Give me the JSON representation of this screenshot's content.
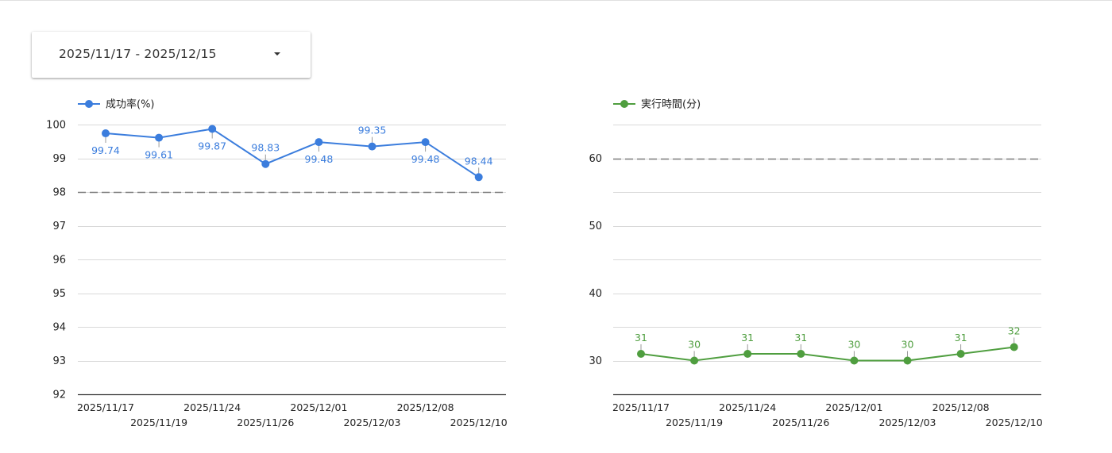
{
  "date_range": {
    "label": "2025/11/17 - 2025/12/15"
  },
  "chart_data": [
    {
      "type": "line",
      "title": "",
      "legend_label": "成功率(%)",
      "legend_position": "top-left",
      "color": "#3b7ddd",
      "x": [
        "2025/11/17",
        "2025/11/19",
        "2025/11/24",
        "2025/11/26",
        "2025/12/01",
        "2025/12/03",
        "2025/12/08",
        "2025/12/10"
      ],
      "values": [
        99.74,
        99.61,
        99.87,
        98.83,
        99.48,
        99.35,
        99.48,
        98.44
      ],
      "data_labels": [
        "99.74",
        "99.61",
        "99.87",
        "98.83",
        "99.48",
        "99.35",
        "99.48",
        "98.44"
      ],
      "label_side": [
        "below",
        "below",
        "below",
        "above",
        "below",
        "above",
        "below",
        "above"
      ],
      "x_tick_labels": [
        "2025/11/17",
        "2025/11/19",
        "2025/11/24",
        "2025/11/26",
        "2025/12/01",
        "2025/12/03",
        "2025/12/08",
        "2025/12/10"
      ],
      "ylim": [
        92,
        100
      ],
      "y_ticks": [
        92,
        93,
        94,
        95,
        96,
        97,
        98,
        99,
        100
      ],
      "y_tick_labels": [
        "92",
        "93",
        "94",
        "95",
        "96",
        "97",
        "98",
        "99",
        "100"
      ],
      "threshold": 98,
      "grid": true
    },
    {
      "type": "line",
      "title": "",
      "legend_label": "実行時間(分)",
      "legend_position": "top-left",
      "color": "#4f9e3f",
      "x": [
        "2025/11/17",
        "2025/11/19",
        "2025/11/24",
        "2025/11/26",
        "2025/12/01",
        "2025/12/03",
        "2025/12/08",
        "2025/12/10"
      ],
      "values": [
        31,
        30,
        31,
        31,
        30,
        30,
        31,
        32
      ],
      "data_labels": [
        "31",
        "30",
        "31",
        "31",
        "30",
        "30",
        "31",
        "32"
      ],
      "label_side": [
        "above",
        "above",
        "above",
        "above",
        "above",
        "above",
        "above",
        "above"
      ],
      "x_tick_labels": [
        "2025/11/17",
        "2025/11/19",
        "2025/11/24",
        "2025/11/26",
        "2025/12/01",
        "2025/12/03",
        "2025/12/08",
        "2025/12/10"
      ],
      "ylim": [
        25,
        65
      ],
      "y_ticks": [
        30,
        40,
        50,
        60
      ],
      "y_tick_labels": [
        "30",
        "40",
        "50",
        "60"
      ],
      "grid_values": [
        30,
        35,
        40,
        45,
        50,
        55,
        60,
        65
      ],
      "threshold": 60,
      "grid": true
    }
  ]
}
